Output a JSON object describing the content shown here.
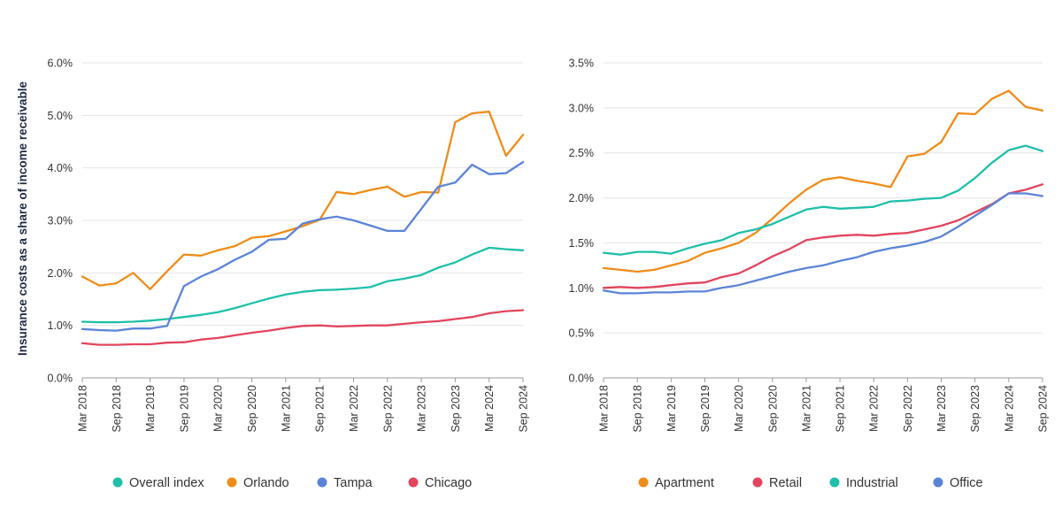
{
  "chart_data": [
    {
      "type": "line",
      "title": "",
      "ylabel": "Insurance costs as a share of income receivable",
      "xlabel": "",
      "ylim": [
        0,
        6
      ],
      "yticks": [
        "0.0%",
        "1.0%",
        "2.0%",
        "3.0%",
        "4.0%",
        "5.0%",
        "6.0%"
      ],
      "x_tick_labels": [
        "Mar 2018",
        "Sep 2018",
        "Mar 2019",
        "Sep 2019",
        "Mar 2020",
        "Sep 2020",
        "Mar 2021",
        "Sep 2021",
        "Mar 2022",
        "Sep 2022",
        "Mar 2023",
        "Sep 2023",
        "Mar 2024",
        "Sep 2024"
      ],
      "legend_position": "bottom",
      "series": [
        {
          "name": "Overall index",
          "color": "#1fbfa9",
          "values": [
            1.07,
            1.06,
            1.06,
            1.07,
            1.09,
            1.12,
            1.16,
            1.2,
            1.25,
            1.33,
            1.42,
            1.51,
            1.59,
            1.64,
            1.67,
            1.68,
            1.7,
            1.73,
            1.84,
            1.89,
            1.96,
            2.1,
            2.2,
            2.35,
            2.48,
            2.45,
            2.43
          ]
        },
        {
          "name": "Orlando",
          "color": "#ef8c17",
          "values": [
            1.93,
            1.76,
            1.8,
            2.0,
            1.69,
            2.03,
            2.35,
            2.33,
            2.43,
            2.51,
            2.67,
            2.7,
            2.79,
            2.89,
            3.01,
            3.54,
            3.5,
            3.58,
            3.64,
            3.45,
            3.54,
            3.53,
            4.87,
            5.04,
            5.07,
            4.23,
            4.63
          ]
        },
        {
          "name": "Tampa",
          "color": "#5b84d6",
          "values": [
            0.93,
            0.91,
            0.9,
            0.94,
            0.94,
            0.99,
            1.75,
            1.93,
            2.07,
            2.25,
            2.4,
            2.63,
            2.65,
            2.94,
            3.02,
            3.07,
            3.0,
            2.9,
            2.8,
            2.8,
            3.22,
            3.64,
            3.72,
            4.06,
            3.88,
            3.9,
            4.11
          ]
        },
        {
          "name": "Chicago",
          "color": "#e2455d",
          "values": [
            0.66,
            0.63,
            0.63,
            0.64,
            0.64,
            0.67,
            0.68,
            0.73,
            0.76,
            0.81,
            0.86,
            0.9,
            0.95,
            0.99,
            1.0,
            0.98,
            0.99,
            1.0,
            1.0,
            1.03,
            1.06,
            1.08,
            1.12,
            1.16,
            1.23,
            1.27,
            1.29
          ]
        }
      ]
    },
    {
      "type": "line",
      "title": "",
      "ylabel": "",
      "xlabel": "",
      "ylim": [
        0,
        3.5
      ],
      "yticks": [
        "0.0%",
        "0.5%",
        "1.0%",
        "1.5%",
        "2.0%",
        "2.5%",
        "3.0%",
        "3.5%"
      ],
      "x_tick_labels": [
        "Mar 2018",
        "Sep 2018",
        "Mar 2019",
        "Sep 2019",
        "Mar 2020",
        "Sep 2020",
        "Mar 2021",
        "Sep 2021",
        "Mar 2022",
        "Sep 2022",
        "Mar 2023",
        "Sep 2023",
        "Mar 2024",
        "Sep 2024"
      ],
      "legend_position": "bottom",
      "series": [
        {
          "name": "Apartment",
          "color": "#ef8c17",
          "values": [
            1.22,
            1.2,
            1.18,
            1.2,
            1.25,
            1.3,
            1.39,
            1.44,
            1.5,
            1.61,
            1.77,
            1.94,
            2.09,
            2.2,
            2.23,
            2.19,
            2.16,
            2.12,
            2.46,
            2.49,
            2.62,
            2.94,
            2.93,
            3.1,
            3.19,
            3.01,
            2.97
          ]
        },
        {
          "name": "Retail",
          "color": "#e2455d",
          "values": [
            1.0,
            1.01,
            1.0,
            1.01,
            1.03,
            1.05,
            1.06,
            1.12,
            1.16,
            1.25,
            1.35,
            1.43,
            1.53,
            1.56,
            1.58,
            1.59,
            1.58,
            1.6,
            1.61,
            1.65,
            1.69,
            1.75,
            1.84,
            1.93,
            2.05,
            2.09,
            2.15
          ]
        },
        {
          "name": "Industrial",
          "color": "#1fbfa9",
          "values": [
            1.39,
            1.37,
            1.4,
            1.4,
            1.38,
            1.44,
            1.49,
            1.53,
            1.61,
            1.65,
            1.71,
            1.79,
            1.87,
            1.9,
            1.88,
            1.89,
            1.9,
            1.96,
            1.97,
            1.99,
            2.0,
            2.08,
            2.22,
            2.39,
            2.53,
            2.58,
            2.52
          ]
        },
        {
          "name": "Office",
          "color": "#5b84d6",
          "values": [
            0.97,
            0.94,
            0.94,
            0.95,
            0.95,
            0.96,
            0.96,
            1.0,
            1.03,
            1.08,
            1.13,
            1.18,
            1.22,
            1.25,
            1.3,
            1.34,
            1.4,
            1.44,
            1.47,
            1.51,
            1.57,
            1.68,
            1.8,
            1.92,
            2.05,
            2.05,
            2.02
          ]
        }
      ]
    }
  ]
}
